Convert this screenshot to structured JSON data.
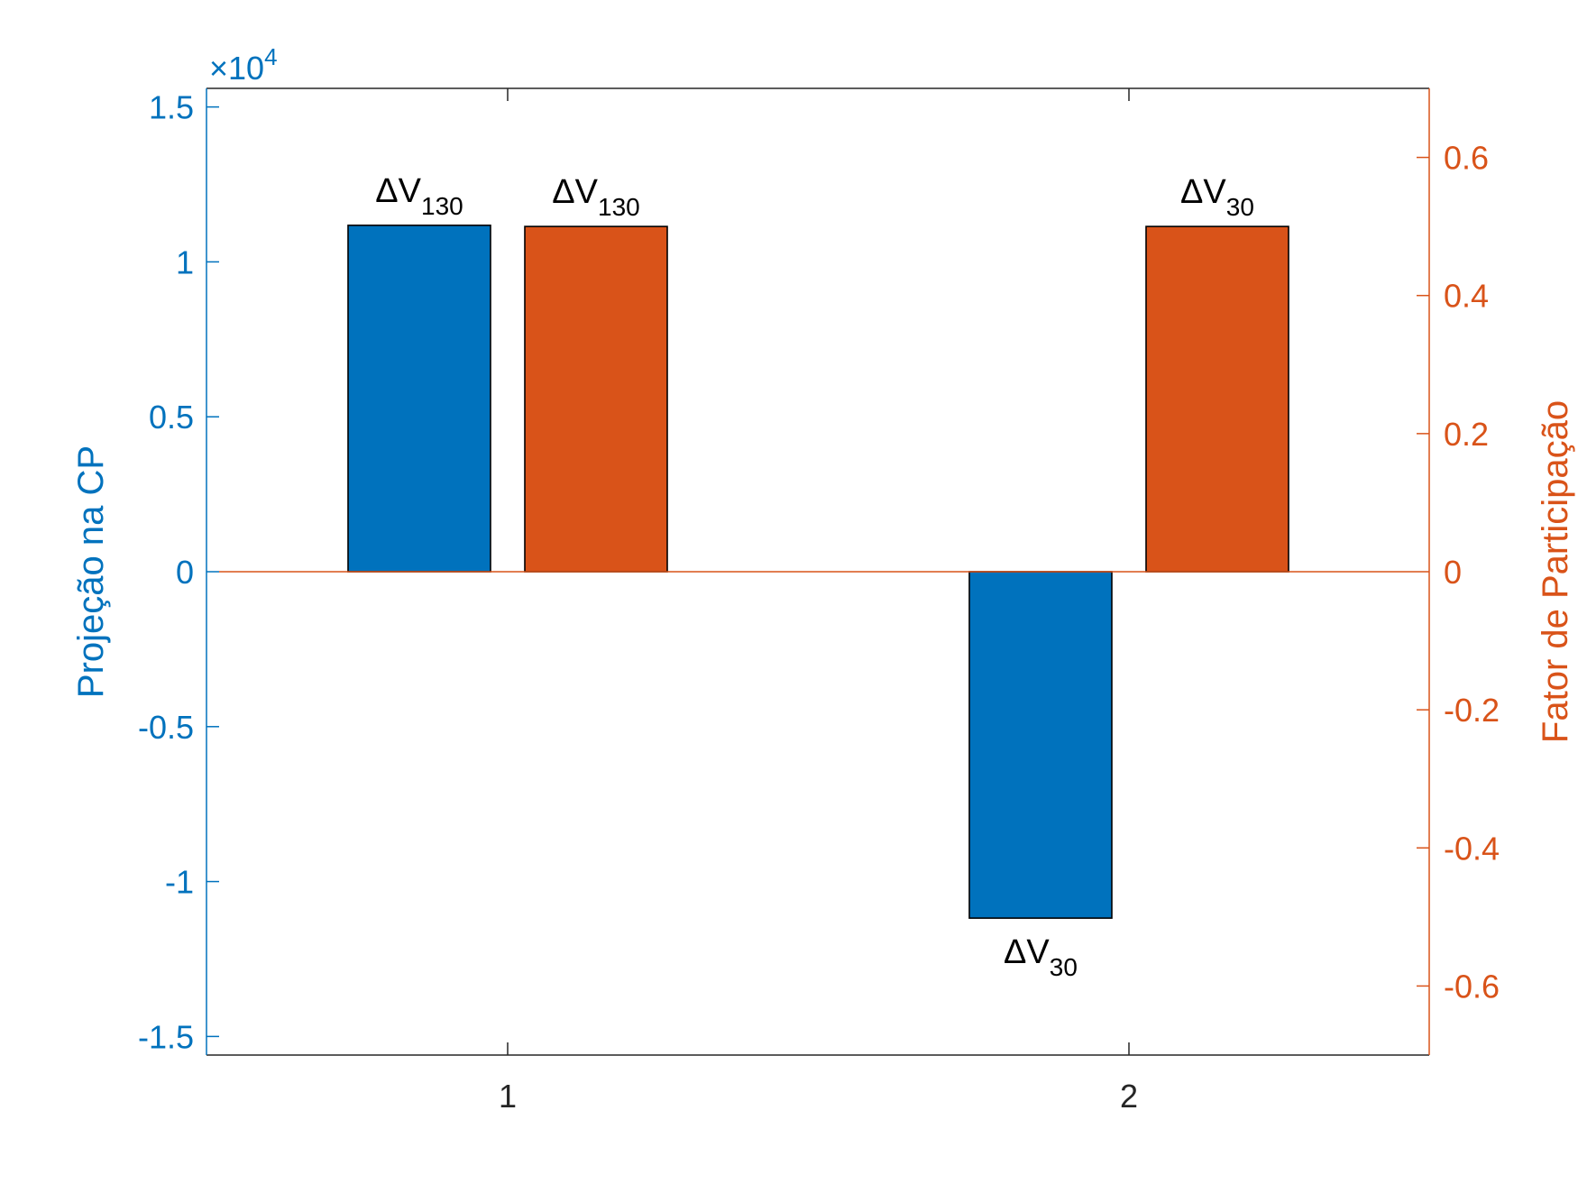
{
  "colors": {
    "left_axis": "#0072BD",
    "right_axis": "#D95319",
    "frame": "#262626",
    "bar_outline": "#000000"
  },
  "chart_data": {
    "type": "bar",
    "categories": [
      "1",
      "2"
    ],
    "grid": false,
    "y_left": {
      "label": "Projeção na CP",
      "multiplier": "×10",
      "exponent": "4",
      "range": [
        -1.56,
        1.56
      ],
      "ticks": [
        -1.5,
        -1,
        -0.5,
        0,
        0.5,
        1,
        1.5
      ],
      "tick_labels": [
        "-1.5",
        "-1",
        "-0.5",
        "0",
        "0.5",
        "1",
        "1.5"
      ]
    },
    "y_right": {
      "label": "Fator de Participação",
      "range": [
        -0.7,
        0.7
      ],
      "ticks": [
        -0.6,
        -0.4,
        -0.2,
        0,
        0.2,
        0.4,
        0.6
      ],
      "tick_labels": [
        "-0.6",
        "-0.4",
        "-0.2",
        "0",
        "0.2",
        "0.4",
        "0.6"
      ]
    },
    "series": [
      {
        "axis": "left",
        "color": "#0072BD",
        "values": [
          1.118,
          -1.118
        ],
        "labels": [
          {
            "base": "ΔV",
            "sub": "130"
          },
          {
            "base": "ΔV",
            "sub": "30"
          }
        ]
      },
      {
        "axis": "right",
        "color": "#D95319",
        "values": [
          0.5,
          0.5
        ],
        "labels": [
          {
            "base": "ΔV",
            "sub": "130"
          },
          {
            "base": "ΔV",
            "sub": "30"
          }
        ]
      }
    ]
  }
}
